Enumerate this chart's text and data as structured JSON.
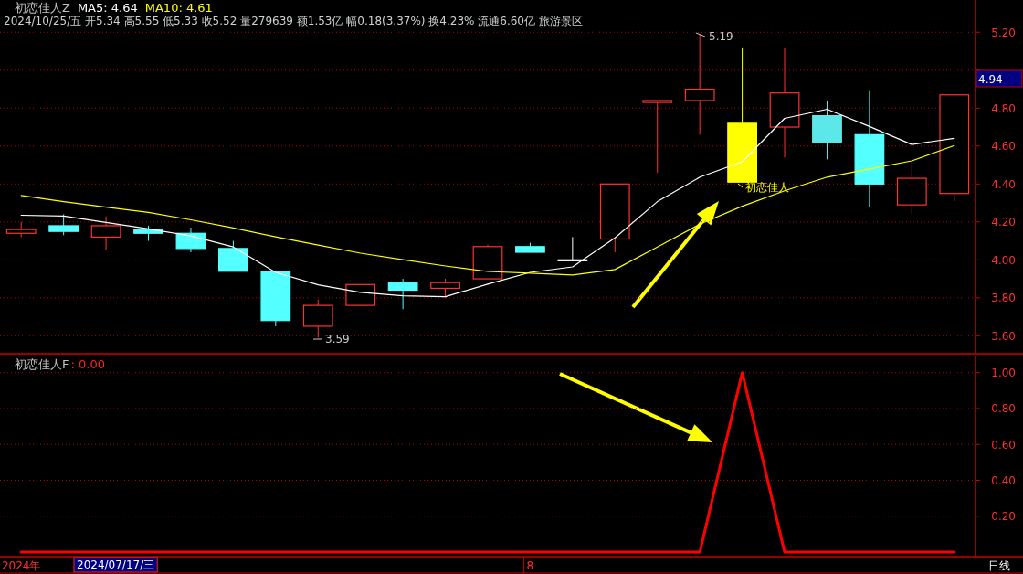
{
  "chart_data": [
    {
      "type": "candlestick",
      "title": "初恋佳人Z",
      "subtitle": "2024/10/25/五 开5.34 高5.55 低5.33 收5.52 量279639 额1.53亿 幅0.18(3.37%) 换4.23% 流通6.60亿 旅游景区",
      "categories": [
        null,
        null,
        null,
        null,
        null,
        null,
        null,
        null,
        null,
        null,
        null,
        null,
        null,
        null,
        null,
        null,
        null,
        null,
        null,
        null,
        null,
        null,
        null
      ],
      "ohlc": [
        [
          4.14,
          4.2,
          4.12,
          4.16
        ],
        [
          4.18,
          4.24,
          4.13,
          4.15
        ],
        [
          4.12,
          4.23,
          4.05,
          4.18
        ],
        [
          4.16,
          4.18,
          4.1,
          4.14
        ],
        [
          4.14,
          4.17,
          4.04,
          4.06
        ],
        [
          4.06,
          4.1,
          3.94,
          3.94
        ],
        [
          3.94,
          3.94,
          3.65,
          3.68
        ],
        [
          3.65,
          3.79,
          3.59,
          3.76
        ],
        [
          3.76,
          3.87,
          3.76,
          3.87
        ],
        [
          3.88,
          3.9,
          3.74,
          3.84
        ],
        [
          3.85,
          3.9,
          3.8,
          3.88
        ],
        [
          3.9,
          4.08,
          3.9,
          4.07
        ],
        [
          4.07,
          4.09,
          4.04,
          4.04
        ],
        [
          4.0,
          4.12,
          4.0,
          4.0
        ],
        [
          4.11,
          4.4,
          4.04,
          4.4
        ],
        [
          4.83,
          4.84,
          4.46,
          4.84
        ],
        [
          4.84,
          5.19,
          4.66,
          4.9
        ],
        [
          4.72,
          5.12,
          4.41,
          4.41
        ],
        [
          4.7,
          5.12,
          4.54,
          4.88
        ],
        [
          4.76,
          4.84,
          4.53,
          4.62
        ],
        [
          4.66,
          4.89,
          4.28,
          4.4
        ],
        [
          4.29,
          4.52,
          4.24,
          4.43
        ],
        [
          4.35,
          4.87,
          4.31,
          4.87
        ]
      ],
      "colors": [
        "#ff3232",
        "#54ffff",
        "#ff3232",
        "#54ffff",
        "#54ffff",
        "#54ffff",
        "#54ffff",
        "#ff3232",
        "#ff3232",
        "#54ffff",
        "#ff3232",
        "#ff3232",
        "#54ffff",
        "#ffffff",
        "#ff3232",
        "#ff3232",
        "#ff3232",
        "#ffff00",
        "#ff3232",
        "#5ce8e8",
        "#54ffff",
        "#ff3232",
        "#ff3232"
      ],
      "series": [
        {
          "type": "line",
          "name": "MA5: 4.64",
          "color": "#ffffff",
          "values": [
            4.235,
            4.231,
            4.197,
            4.164,
            4.126,
            4.068,
            3.934,
            3.868,
            3.829,
            3.81,
            3.806,
            3.872,
            3.934,
            3.963,
            4.116,
            4.307,
            4.436,
            4.517,
            4.746,
            4.794,
            4.703,
            4.608,
            4.641
          ]
        },
        {
          "type": "line",
          "name": "MA10: 4.61",
          "color": "#ffff00",
          "values": [
            4.34,
            4.307,
            4.278,
            4.25,
            4.211,
            4.168,
            4.121,
            4.078,
            4.035,
            4.001,
            3.968,
            3.939,
            3.93,
            3.92,
            3.949,
            4.068,
            4.188,
            4.283,
            4.364,
            4.436,
            4.479,
            4.522,
            4.603
          ]
        }
      ],
      "ylim": [
        3.51,
        5.37
      ],
      "yticks": [
        {
          "value": 3.6,
          "label": "3.60"
        },
        {
          "value": 3.8,
          "label": "3.80"
        },
        {
          "value": 4.0,
          "label": "4.00"
        },
        {
          "value": 4.2,
          "label": "4.20"
        },
        {
          "value": 4.4,
          "label": "4.40"
        },
        {
          "value": 4.6,
          "label": "4.60"
        },
        {
          "value": 4.8,
          "label": "4.80"
        },
        {
          "value": 5.0,
          "label": null
        },
        {
          "value": 5.2,
          "label": "5.20"
        }
      ],
      "annotations": [
        "5.19",
        "3.59",
        "初恋佳人",
        "4.94"
      ],
      "grid": "y",
      "legend": "top left",
      "tick_labels": "y"
    },
    {
      "type": "line",
      "categories": [
        "2024年",
        null,
        null,
        null,
        null,
        null,
        null,
        null,
        null,
        null,
        null,
        null,
        "8",
        null,
        null,
        null,
        null,
        null,
        null,
        null,
        null,
        null,
        null
      ],
      "series": [
        {
          "name": "初恋佳人F",
          "color": "#ff0000",
          "values": [
            0,
            0,
            0,
            0,
            0,
            0,
            0,
            0,
            0,
            0,
            0,
            0,
            0,
            0,
            0,
            0,
            0,
            1,
            0,
            0,
            0,
            0,
            0
          ]
        }
      ],
      "ylim": [
        -0.02,
        1.09
      ],
      "yticks": [
        {
          "value": 0.2,
          "label": "0.20"
        },
        {
          "value": 0.4,
          "label": "0.40"
        },
        {
          "value": 0.6,
          "label": "0.60"
        },
        {
          "value": 0.8,
          "label": "0.80"
        },
        {
          "value": 1.0,
          "label": "1.00"
        }
      ],
      "annotations": [
        ": 0.00",
        "2024/07/17/三",
        "日线"
      ],
      "grid": "y",
      "legend": "top left"
    }
  ]
}
